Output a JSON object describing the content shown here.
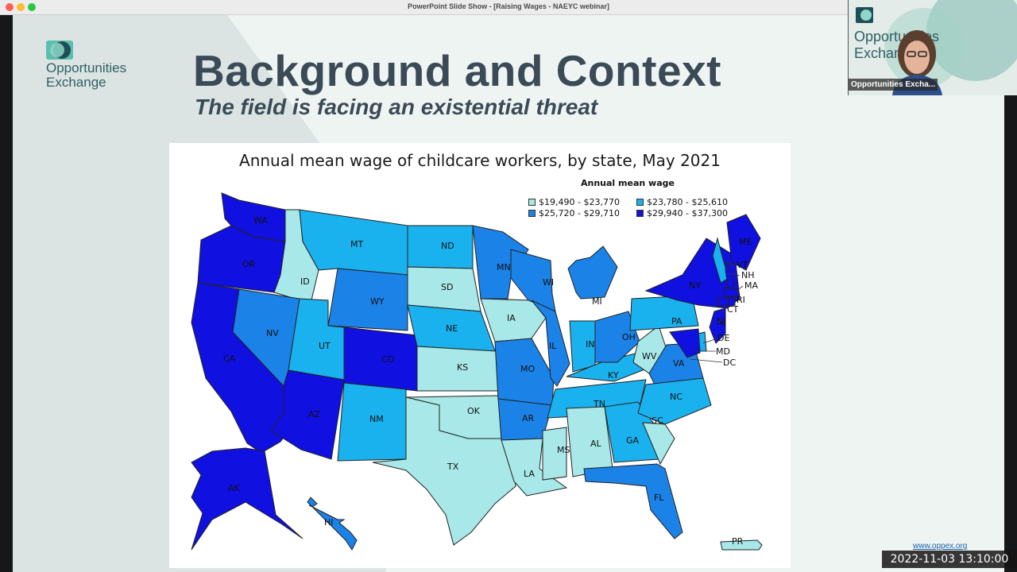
{
  "window": {
    "title": "PowerPoint Slide Show - [Raising Wages - NAEYC webinar]"
  },
  "slide": {
    "logo_line1": "Opportunities",
    "logo_line2": "Exchange",
    "title": "Background and Context",
    "subtitle": "The field is facing an existential threat",
    "footer_url": "www.oppex.org"
  },
  "map": {
    "title": "Annual mean wage of childcare workers, by state, May 2021",
    "legend_title": "Annual mean wage",
    "legend": [
      {
        "label": "$19,490 - $23,770",
        "color": "#a8e8e8"
      },
      {
        "label": "$23,780 - $25,610",
        "color": "#1ab2ee"
      },
      {
        "label": "$25,720 - $29,710",
        "color": "#1b82e8"
      },
      {
        "label": "$29,940 - $37,300",
        "color": "#1010e0"
      }
    ],
    "states": [
      "WA",
      "OR",
      "CA",
      "ID",
      "NV",
      "MT",
      "WY",
      "UT",
      "AZ",
      "CO",
      "NM",
      "ND",
      "SD",
      "NE",
      "KS",
      "OK",
      "TX",
      "MN",
      "IA",
      "MO",
      "AR",
      "LA",
      "WI",
      "IL",
      "MS",
      "MI",
      "IN",
      "KY",
      "TN",
      "AL",
      "OH",
      "GA",
      "FL",
      "WV",
      "VA",
      "NC",
      "SC",
      "PA",
      "NY",
      "ME",
      "VT",
      "NH",
      "MA",
      "CT",
      "RI",
      "NJ",
      "DE",
      "MD",
      "DC",
      "AK",
      "HI",
      "PR"
    ]
  },
  "video": {
    "participant": "Opportunities Excha..."
  },
  "timestamp": "2022-11-03  13:10:00",
  "colors": {
    "title": "#3b4a57",
    "logo_teal": "#2f5f66"
  }
}
